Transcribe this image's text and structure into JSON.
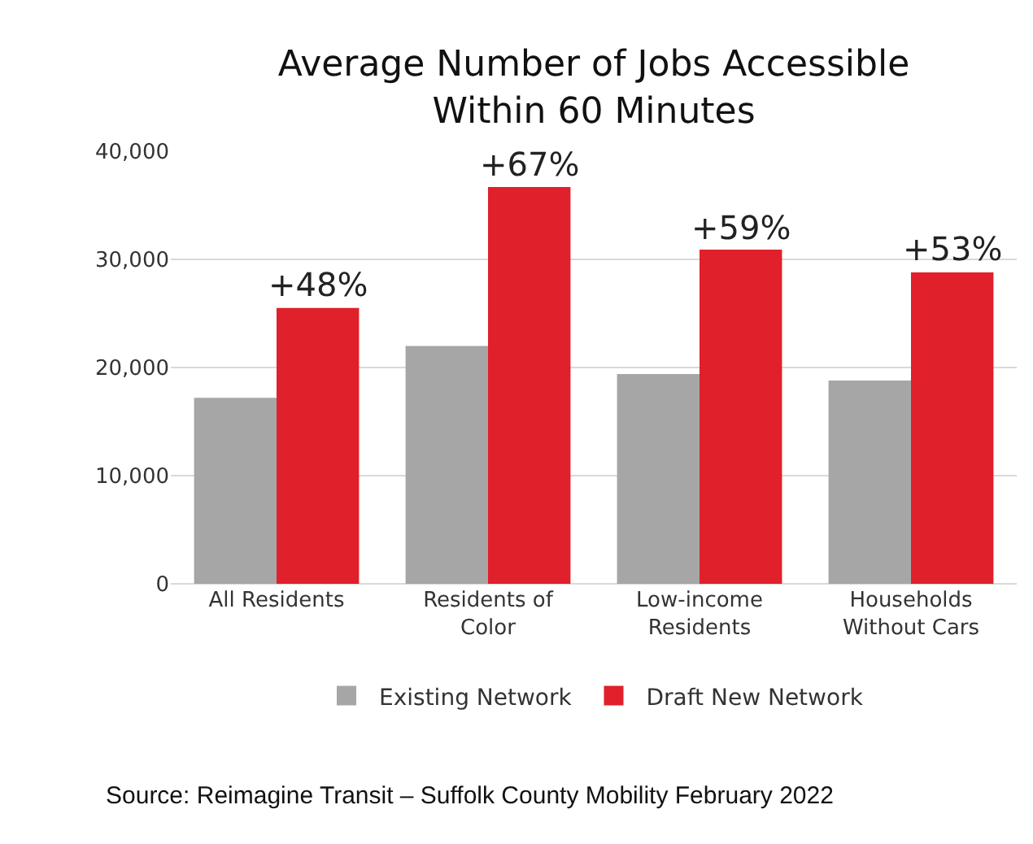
{
  "chart_data": {
    "type": "bar",
    "title": "Average Number of Jobs Accessible\nWithin 60 Minutes",
    "categories": [
      "All Residents",
      "Residents of\nColor",
      "Low-income\nResidents",
      "Households\nWithout Cars"
    ],
    "series": [
      {
        "name": "Existing Network",
        "color": "#a6a6a6",
        "values": [
          17200,
          22000,
          19400,
          18800
        ]
      },
      {
        "name": "Draft New Network",
        "color": "#e0202a",
        "values": [
          25500,
          36700,
          30900,
          28800
        ]
      }
    ],
    "ylim": [
      0,
      40000
    ],
    "yticks": [
      {
        "value": 0,
        "label": "0"
      },
      {
        "value": 10000,
        "label": "10,000"
      },
      {
        "value": 20000,
        "label": "20,000"
      },
      {
        "value": 30000,
        "label": "30,000"
      },
      {
        "value": 40000,
        "label": "40,000"
      }
    ],
    "grid": "y",
    "legend": "bottom",
    "annotations": [
      {
        "text": "+48%",
        "x": "All Residents",
        "y": 25500
      },
      {
        "text": "+67%",
        "x": "Residents of\nColor",
        "y": 36700
      },
      {
        "text": "+59%",
        "x": "Low-income\nResidents",
        "y": 30900
      },
      {
        "text": "+53%",
        "x": "Households\nWithout Cars",
        "y": 28800
      },
      "Source: Reimagine Transit – Suffolk County Mobility February 2022"
    ]
  }
}
